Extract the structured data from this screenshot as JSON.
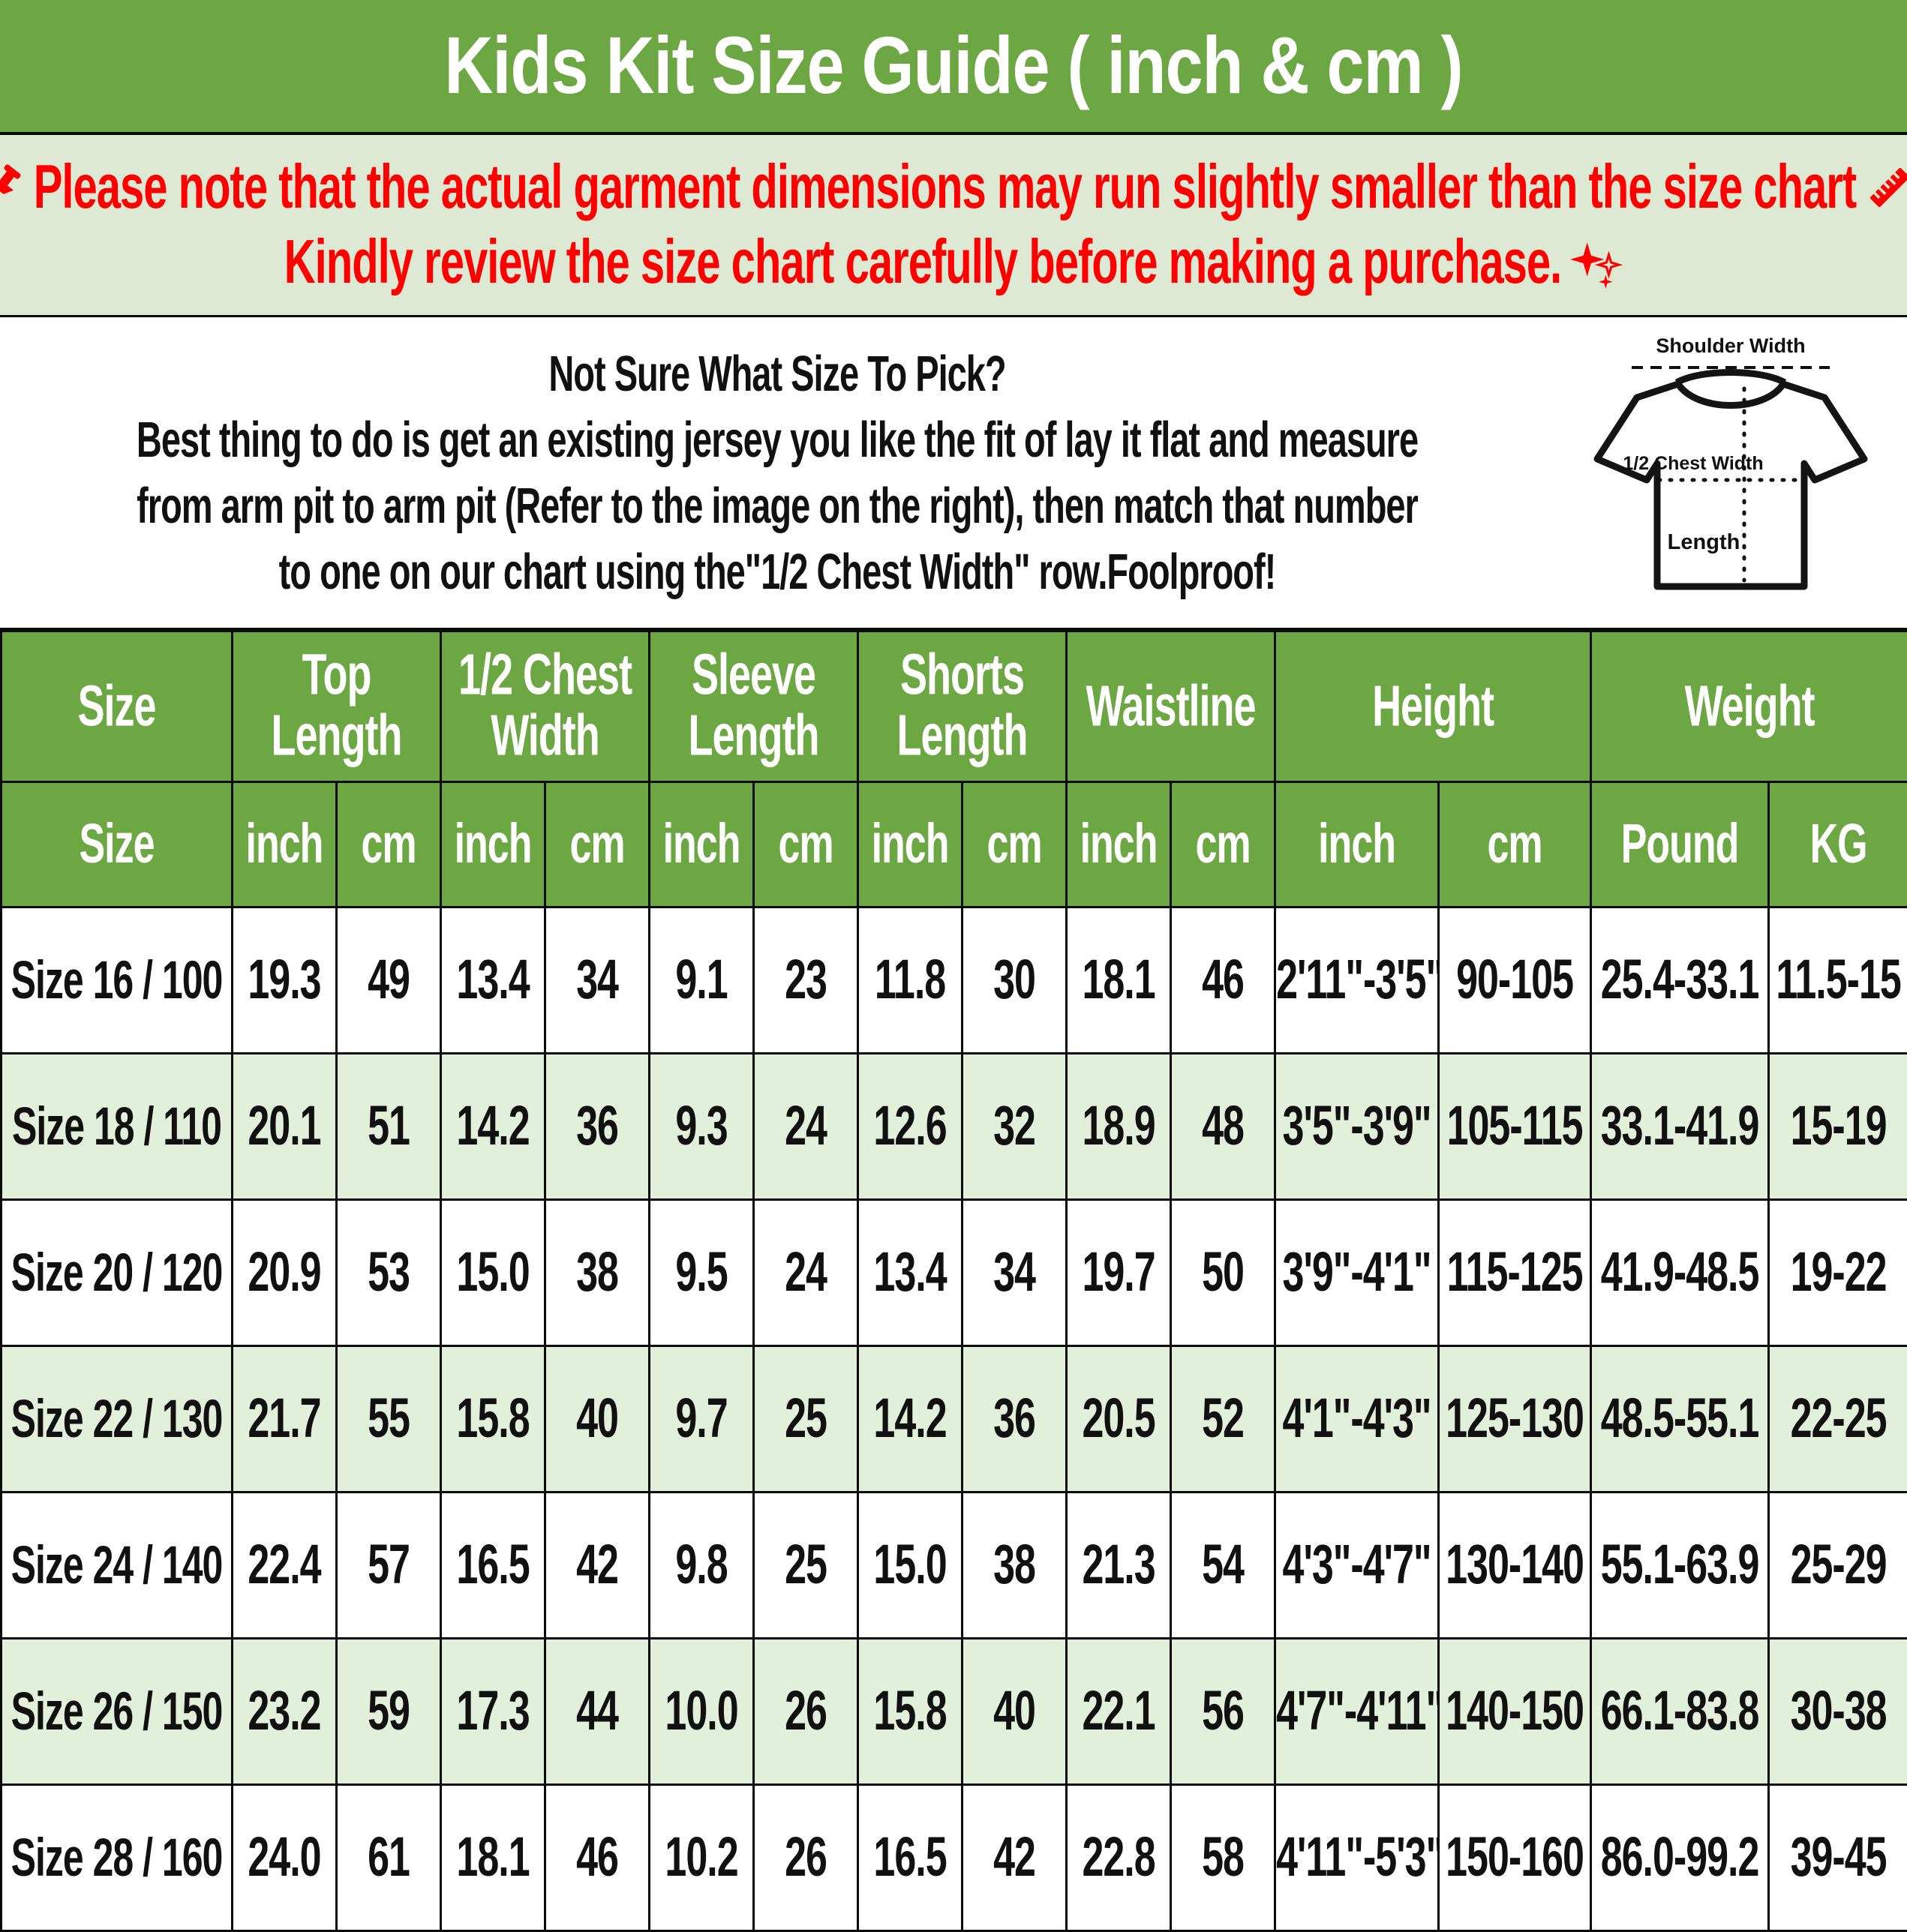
{
  "title": "Kids Kit Size Guide ( inch & cm )",
  "colors": {
    "header_green": "#6DA743",
    "notice_bg": "#DEE9D4",
    "alt_row_bg": "#E2EFDA",
    "notice_red": "#FF0000"
  },
  "notice": {
    "line1_prefix": "Please note that the actual garment dimensions may run slightly smaller than the size chart",
    "line1_suffix": ".",
    "line2": "Kindly review the size chart carefully before making a purchase.",
    "icons": [
      "pushpin-icon",
      "ruler-icon",
      "sparkles-icon"
    ]
  },
  "intro": {
    "lines": [
      "Not Sure What Size To Pick?",
      "Best thing to do is get an existing jersey you like the fit of lay it flat and measure",
      "from arm pit to arm pit (Refer to the image on the right), then match that number",
      "to one on our chart using the\"1/2 Chest Width\" row.Foolproof!"
    ]
  },
  "diagram": {
    "shoulder_label": "Shoulder Width",
    "chest_label": "1/2 Chest Width",
    "length_label": "Length"
  },
  "table": {
    "header_groups": [
      {
        "label": "Size",
        "span": 1
      },
      {
        "label": "Top Length",
        "span": 2
      },
      {
        "label": "1/2 Chest Width",
        "span": 2
      },
      {
        "label": "Sleeve Length",
        "span": 2
      },
      {
        "label": "Shorts Length",
        "span": 2
      },
      {
        "label": "Waistline",
        "span": 2
      },
      {
        "label": "Height",
        "span": 2
      },
      {
        "label": "Weight",
        "span": 2
      }
    ],
    "subheader": [
      "Size",
      "inch",
      "cm",
      "inch",
      "cm",
      "inch",
      "cm",
      "inch",
      "cm",
      "inch",
      "cm",
      "inch",
      "cm",
      "Pound",
      "KG"
    ],
    "rows": [
      [
        "Size 16 / 100",
        "19.3",
        "49",
        "13.4",
        "34",
        "9.1",
        "23",
        "11.8",
        "30",
        "18.1",
        "46",
        "2'11\"-3'5\"",
        "90-105",
        "25.4-33.1",
        "11.5-15"
      ],
      [
        "Size 18 / 110",
        "20.1",
        "51",
        "14.2",
        "36",
        "9.3",
        "24",
        "12.6",
        "32",
        "18.9",
        "48",
        "3'5\"-3'9\"",
        "105-115",
        "33.1-41.9",
        "15-19"
      ],
      [
        "Size 20 / 120",
        "20.9",
        "53",
        "15.0",
        "38",
        "9.5",
        "24",
        "13.4",
        "34",
        "19.7",
        "50",
        "3'9\"-4'1\"",
        "115-125",
        "41.9-48.5",
        "19-22"
      ],
      [
        "Size 22 / 130",
        "21.7",
        "55",
        "15.8",
        "40",
        "9.7",
        "25",
        "14.2",
        "36",
        "20.5",
        "52",
        "4'1\"-4'3\"",
        "125-130",
        "48.5-55.1",
        "22-25"
      ],
      [
        "Size 24 / 140",
        "22.4",
        "57",
        "16.5",
        "42",
        "9.8",
        "25",
        "15.0",
        "38",
        "21.3",
        "54",
        "4'3\"-4'7\"",
        "130-140",
        "55.1-63.9",
        "25-29"
      ],
      [
        "Size 26 / 150",
        "23.2",
        "59",
        "17.3",
        "44",
        "10.0",
        "26",
        "15.8",
        "40",
        "22.1",
        "56",
        "4'7\"-4'11\"",
        "140-150",
        "66.1-83.8",
        "30-38"
      ],
      [
        "Size 28 / 160",
        "24.0",
        "61",
        "18.1",
        "46",
        "10.2",
        "26",
        "16.5",
        "42",
        "22.8",
        "58",
        "4'11\"-5'3\"",
        "150-160",
        "86.0-99.2",
        "39-45"
      ]
    ]
  }
}
